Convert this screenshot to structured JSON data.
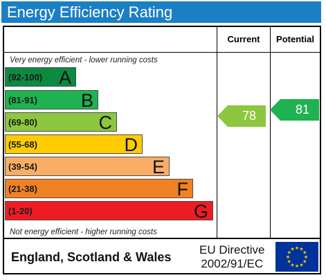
{
  "header": {
    "title": "Energy Efficiency Rating"
  },
  "columns": {
    "current": "Current",
    "potential": "Potential"
  },
  "notes": {
    "top": "Very energy efficient - lower running costs",
    "bottom": "Not energy efficient - higher running costs"
  },
  "bands": [
    {
      "range": "(92-100)",
      "letter": "A",
      "color": "#0c8a41"
    },
    {
      "range": "(81-91)",
      "letter": "B",
      "color": "#1fb250"
    },
    {
      "range": "(69-80)",
      "letter": "C",
      "color": "#8dc63f"
    },
    {
      "range": "(55-68)",
      "letter": "D",
      "color": "#ffcc00"
    },
    {
      "range": "(39-54)",
      "letter": "E",
      "color": "#f9ae66"
    },
    {
      "range": "(21-38)",
      "letter": "F",
      "color": "#f08124"
    },
    {
      "range": "(1-20)",
      "letter": "G",
      "color": "#ed1c24"
    }
  ],
  "ratings": {
    "current": {
      "value": "78",
      "color": "#8dc63f"
    },
    "potential": {
      "value": "81",
      "color": "#1fb250"
    }
  },
  "footer": {
    "region": "England, Scotland & Wales",
    "directive_line1": "EU Directive",
    "directive_line2": "2002/91/EC"
  }
}
